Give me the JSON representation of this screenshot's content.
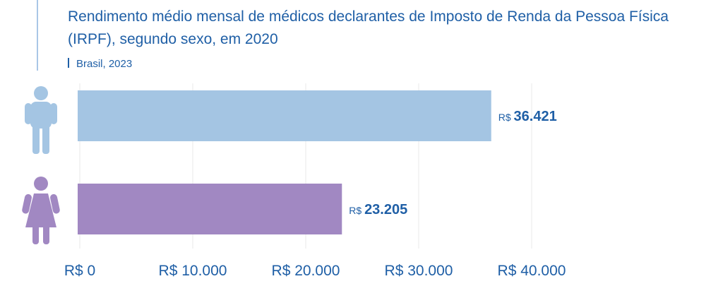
{
  "title": "Rendimento médio mensal de médicos declarantes de Imposto de Renda da Pessoa Física (IRPF), segundo sexo, em 2020",
  "subtitle": "Brasil, 2023",
  "colors": {
    "title": "#1f5fa6",
    "male": "#a4c5e3",
    "female": "#a188c2",
    "grid": "#e8e8e8",
    "value_text": "#1f5fa6"
  },
  "icons": {
    "male": "male-person-icon",
    "female": "female-person-icon"
  },
  "chart_data": {
    "type": "bar",
    "orientation": "horizontal",
    "categories": [
      "male-icon",
      "female-icon"
    ],
    "values": [
      36421,
      23205
    ],
    "value_prefix": "R$",
    "value_labels": [
      "36.421",
      "23.205"
    ],
    "xlim": [
      0,
      40000
    ],
    "xticks": [
      0,
      10000,
      20000,
      30000,
      40000
    ],
    "xtick_labels": [
      "R$ 0",
      "R$ 10.000",
      "R$ 20.000",
      "R$ 30.000",
      "R$ 40.000"
    ],
    "grid": true,
    "legend": "none"
  }
}
